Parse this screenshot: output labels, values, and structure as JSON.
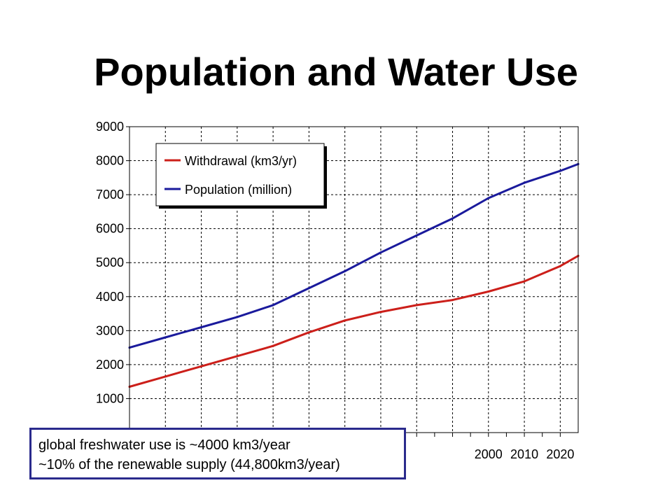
{
  "title": "Population and Water Use",
  "callout": {
    "line1": "global freshwater use is ~4000 km3/year",
    "line2": "~10% of the renewable supply (44,800km3/year)"
  },
  "chart_data": {
    "type": "line",
    "title": "",
    "xlabel": "",
    "ylabel": "",
    "xlim": [
      1900,
      2025
    ],
    "ylim": [
      0,
      9000
    ],
    "y_ticks": [
      0,
      1000,
      2000,
      3000,
      4000,
      5000,
      6000,
      7000,
      8000,
      9000
    ],
    "y_tick_labels": [
      "",
      "1000",
      "2000",
      "3000",
      "4000",
      "5000",
      "6000",
      "7000",
      "8000",
      "9000"
    ],
    "x_ticks": [
      2000,
      2010,
      2020
    ],
    "x_tick_labels": [
      "2000",
      "2010",
      "2020"
    ],
    "grid": true,
    "legend_position": "top-left",
    "series": [
      {
        "name": "Withdrawal (km3/yr)",
        "color": "#cc1f1a",
        "x": [
          1900,
          1910,
          1920,
          1930,
          1940,
          1950,
          1960,
          1970,
          1980,
          1990,
          2000,
          2010,
          2020,
          2025
        ],
        "y": [
          1350,
          1650,
          1950,
          2250,
          2550,
          2950,
          3300,
          3550,
          3750,
          3900,
          4150,
          4450,
          4900,
          5200
        ]
      },
      {
        "name": "Population (million)",
        "color": "#1a1a9c",
        "x": [
          1900,
          1910,
          1920,
          1930,
          1940,
          1950,
          1960,
          1970,
          1980,
          1990,
          2000,
          2010,
          2020,
          2025
        ],
        "y": [
          2500,
          2800,
          3100,
          3400,
          3750,
          4250,
          4750,
          5300,
          5800,
          6300,
          6900,
          7350,
          7700,
          7900
        ]
      }
    ]
  }
}
